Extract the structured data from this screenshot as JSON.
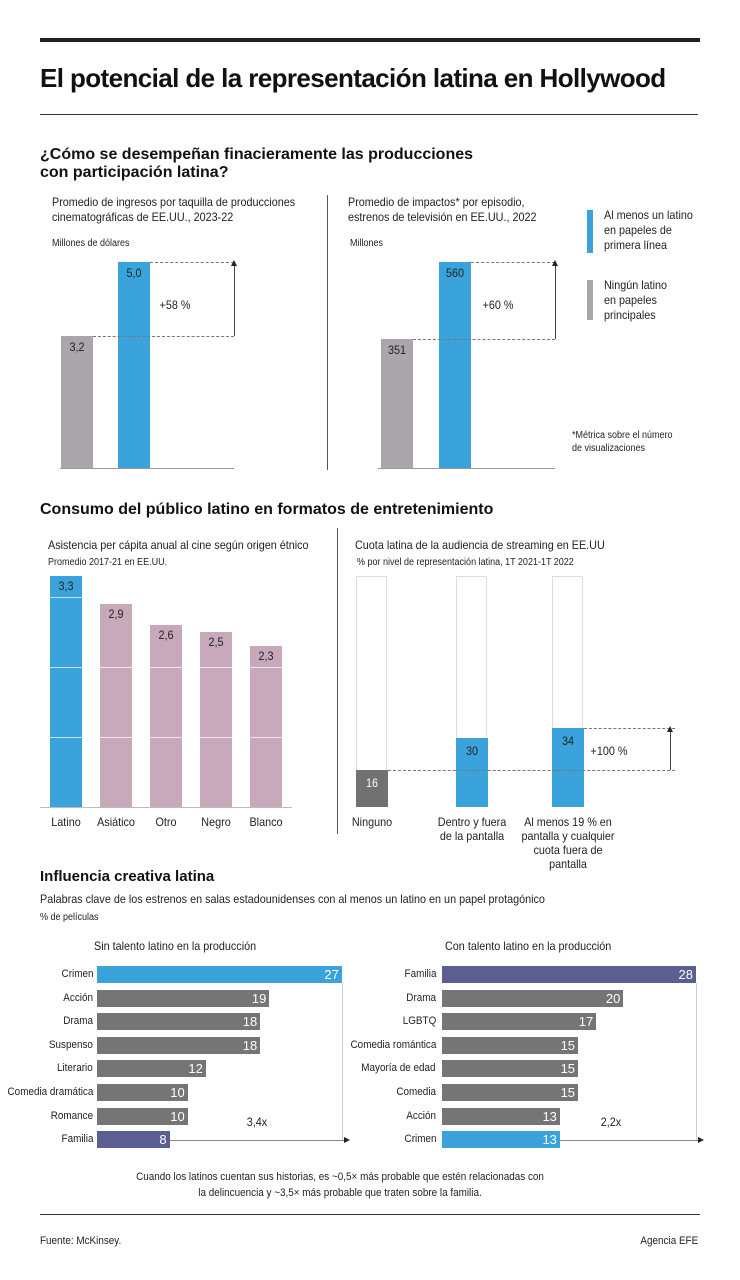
{
  "title": "El potencial de la representación latina en Hollywood",
  "section1": {
    "heading_l1": "¿Cómo se desempeñan finacieramente las producciones",
    "heading_l2": "con participación latina?",
    "footnote_l1": "*Métrica sobre el número",
    "footnote_l2": "de visualizaciones"
  },
  "legend": [
    {
      "label_l1": "Al menos un latino",
      "label_l2": "en papeles de",
      "label_l3": "primera línea",
      "color": "#3aa3dc"
    },
    {
      "label_l1": "Ningún latino",
      "label_l2": "en papeles",
      "label_l3": "principales",
      "color": "#aaa6ac"
    }
  ],
  "section2": {
    "heading": "Consumo del público latino en formatos de entretenimiento"
  },
  "section3": {
    "heading": "Influencia creativa latina",
    "subtitle": "Palabras clave de los estrenos en salas estadounidenses con al menos un latino en un papel protagónico",
    "unit": "% de películas",
    "note_l1": "Cuando los latinos cuentan sus historias, es ~0,5× más probable que estén relacionadas con",
    "note_l2": "la delincuencia y ~3,5× más probable que traten sobre la familia."
  },
  "footer": {
    "source": "Fuente: McKinsey.",
    "agency": "Agencia EFE"
  },
  "chart_data": [
    {
      "type": "bar",
      "title_l1": "Promedio de ingresos por taquilla de producciones",
      "title_l2": "cinematográficas de EE.UU., 2023-22",
      "ylabel": "Millones de dólares",
      "categories": [
        "Ningún latino en papeles principales",
        "Al menos un latino en papeles de primera línea"
      ],
      "values": [
        3.2,
        5.0
      ],
      "labels": [
        "3,2",
        "5,0"
      ],
      "colors": [
        "#aaa6ac",
        "#3aa3dc"
      ],
      "annotation": "+58 %"
    },
    {
      "type": "bar",
      "title_l1": "Promedio de impactos* por episodio,",
      "title_l2": "estrenos de televisión en EE.UU., 2022",
      "ylabel": "Millones",
      "categories": [
        "Ningún latino en papeles principales",
        "Al menos un latino en papeles de primera línea"
      ],
      "values": [
        351,
        560
      ],
      "labels": [
        "351",
        "560"
      ],
      "colors": [
        "#aaa6ac",
        "#3aa3dc"
      ],
      "annotation": "+60 %"
    },
    {
      "type": "bar",
      "title": "Asistencia per cápita anual al cine según origen étnico",
      "subtitle": "Promedio 2017-21 en EE.UU.",
      "categories": [
        "Latino",
        "Asiático",
        "Otro",
        "Negro",
        "Blanco"
      ],
      "values": [
        3.3,
        2.9,
        2.6,
        2.5,
        2.3
      ],
      "labels": [
        "3,3",
        "2,9",
        "2,6",
        "2,5",
        "2,3"
      ],
      "colors": [
        "#3aa3dc",
        "#c8a9b9",
        "#c8a9b9",
        "#c8a9b9",
        "#c8a9b9"
      ],
      "grid": true
    },
    {
      "type": "bar",
      "title": "Cuota latina de la audiencia de streaming en EE.UU",
      "subtitle": "% por nivel de representación latina, 1T 2021-1T 2022",
      "ylim": [
        0,
        100
      ],
      "categories": [
        [
          "Ninguno"
        ],
        [
          "Dentro y fuera",
          "de la pantalla"
        ],
        [
          "Al menos 19 % en",
          "pantalla y cualquier",
          "cuota fuera de pantalla"
        ]
      ],
      "values": [
        16,
        30,
        34
      ],
      "colors": [
        "#717171",
        "#3aa3dc",
        "#3aa3dc"
      ],
      "annotation": "+100 %"
    },
    {
      "type": "bar",
      "orientation": "horizontal",
      "title": "Sin talento latino en la producción",
      "categories": [
        "Crimen",
        "Acción",
        "Drama",
        "Suspenso",
        "Literario",
        "Comedia dramática",
        "Romance",
        "Familia"
      ],
      "values": [
        27,
        19,
        18,
        18,
        12,
        10,
        10,
        8
      ],
      "colors": [
        "#3aa3dc",
        "#757575",
        "#757575",
        "#757575",
        "#757575",
        "#757575",
        "#757575",
        "#5a5e91"
      ],
      "annotation": "3,4x"
    },
    {
      "type": "bar",
      "orientation": "horizontal",
      "title": "Con talento latino en la producción",
      "categories": [
        "Familia",
        "Drama",
        "LGBTQ",
        "Comedia romántica",
        "Mayoría de edad",
        "Comedia",
        "Acción",
        "Crimen"
      ],
      "values": [
        28,
        20,
        17,
        15,
        15,
        15,
        13,
        13
      ],
      "colors": [
        "#5a5e91",
        "#757575",
        "#757575",
        "#757575",
        "#757575",
        "#757575",
        "#757575",
        "#3aa3dc"
      ],
      "annotation": "2,2x"
    }
  ]
}
